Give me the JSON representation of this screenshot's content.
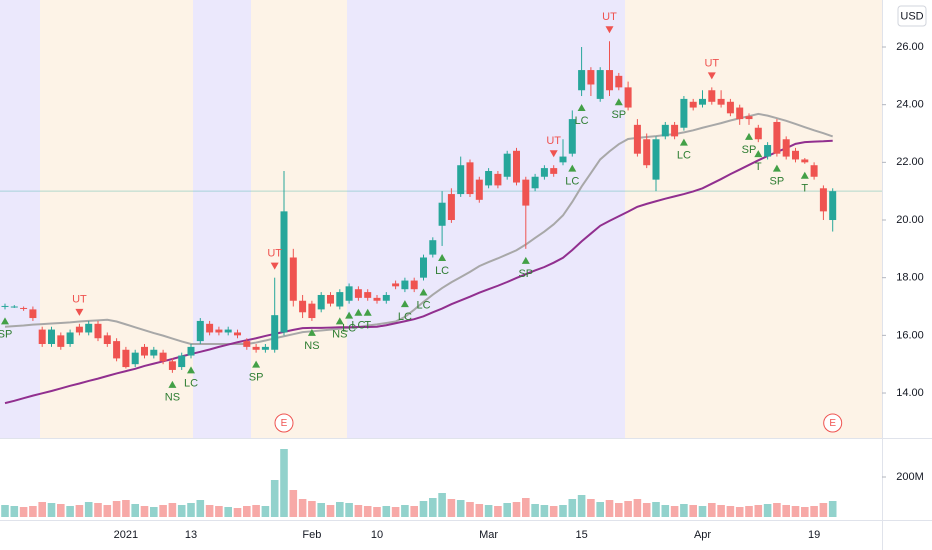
{
  "chart_data": {
    "type": "candlestick",
    "currency": "USD",
    "categories": [
      null,
      null,
      null,
      null,
      null,
      null,
      null,
      null,
      null,
      null,
      null,
      null,
      null,
      "2021",
      null,
      null,
      null,
      null,
      null,
      null,
      "13",
      null,
      null,
      null,
      null,
      null,
      null,
      null,
      null,
      null,
      null,
      null,
      null,
      "Feb",
      null,
      null,
      null,
      null,
      null,
      null,
      "10",
      null,
      null,
      null,
      null,
      null,
      null,
      null,
      null,
      null,
      null,
      null,
      "Mar",
      null,
      null,
      null,
      null,
      null,
      null,
      null,
      null,
      null,
      "15",
      null,
      null,
      null,
      null,
      null,
      null,
      null,
      null,
      null,
      null,
      null,
      null,
      "Apr",
      null,
      null,
      null,
      null,
      null,
      null,
      null,
      null,
      null,
      null,
      null,
      "19",
      null,
      null
    ],
    "open": [
      17.0,
      16.98,
      16.95,
      16.9,
      16.2,
      15.7,
      16.0,
      15.7,
      16.3,
      16.1,
      16.4,
      16.0,
      15.8,
      15.5,
      15.0,
      15.6,
      15.3,
      15.4,
      15.1,
      14.9,
      15.3,
      15.8,
      16.4,
      16.2,
      16.1,
      16.1,
      15.8,
      15.6,
      15.5,
      15.5,
      16.1,
      18.7,
      17.2,
      17.1,
      16.9,
      17.4,
      17.0,
      17.2,
      17.6,
      17.5,
      17.3,
      17.2,
      17.8,
      17.6,
      17.9,
      18.0,
      18.8,
      19.8,
      20.9,
      20.9,
      22.0,
      21.4,
      21.2,
      21.6,
      21.5,
      22.4,
      21.4,
      21.1,
      21.5,
      21.8,
      22.0,
      22.3,
      24.5,
      25.2,
      24.2,
      25.2,
      25.0,
      24.6,
      23.3,
      22.8,
      21.4,
      22.9,
      23.3,
      23.2,
      24.1,
      24.0,
      24.5,
      24.2,
      24.1,
      23.9,
      23.6,
      23.2,
      22.2,
      23.4,
      22.8,
      22.4,
      22.1,
      21.9,
      21.1,
      20.0
    ],
    "high": [
      17.1,
      17.05,
      17.0,
      17.0,
      16.3,
      16.3,
      16.1,
      16.2,
      16.4,
      16.5,
      16.5,
      16.1,
      15.9,
      15.6,
      15.5,
      15.7,
      15.6,
      15.5,
      15.2,
      15.4,
      15.7,
      16.6,
      16.5,
      16.3,
      16.3,
      16.2,
      15.9,
      15.7,
      15.7,
      18.0,
      21.7,
      19.0,
      17.4,
      17.2,
      17.5,
      17.5,
      17.6,
      17.8,
      17.7,
      17.6,
      17.4,
      17.5,
      17.9,
      18.0,
      18.0,
      18.8,
      19.4,
      21.0,
      21.1,
      22.2,
      22.1,
      21.5,
      21.8,
      21.7,
      22.4,
      22.5,
      21.5,
      21.6,
      21.9,
      21.9,
      22.8,
      23.8,
      26.0,
      25.3,
      25.3,
      26.2,
      25.1,
      24.8,
      23.5,
      23.0,
      22.9,
      23.4,
      23.4,
      24.3,
      24.2,
      24.5,
      24.6,
      24.5,
      24.2,
      24.0,
      23.7,
      23.3,
      22.7,
      23.5,
      22.9,
      22.5,
      22.15,
      22.0,
      21.2,
      21.1
    ],
    "low": [
      16.9,
      16.95,
      16.85,
      16.5,
      15.6,
      15.6,
      15.5,
      15.6,
      16.0,
      16.0,
      15.8,
      15.6,
      15.1,
      14.85,
      14.9,
      15.2,
      15.2,
      15.0,
      14.7,
      14.8,
      15.2,
      15.7,
      16.0,
      16.0,
      16.0,
      15.9,
      15.5,
      15.4,
      15.4,
      15.4,
      16.0,
      17.0,
      16.6,
      16.5,
      16.8,
      17.0,
      16.9,
      17.1,
      17.2,
      17.2,
      17.1,
      17.1,
      17.6,
      17.5,
      17.5,
      17.9,
      18.7,
      19.1,
      19.9,
      20.8,
      20.8,
      20.6,
      21.1,
      21.1,
      21.4,
      21.2,
      19.0,
      21.0,
      21.4,
      21.5,
      21.9,
      22.2,
      24.3,
      24.3,
      24.1,
      24.3,
      24.5,
      23.8,
      22.2,
      21.8,
      21.0,
      22.8,
      22.8,
      23.1,
      23.8,
      23.9,
      24.0,
      23.9,
      23.6,
      23.3,
      23.3,
      22.7,
      22.1,
      22.2,
      22.1,
      22.0,
      21.95,
      21.4,
      20.0,
      19.6
    ],
    "close": [
      17.02,
      17.0,
      16.93,
      16.6,
      15.7,
      16.2,
      15.6,
      16.1,
      16.1,
      16.4,
      15.9,
      15.7,
      15.2,
      14.9,
      15.4,
      15.3,
      15.5,
      15.1,
      14.8,
      15.3,
      15.6,
      16.5,
      16.1,
      16.1,
      16.2,
      16.0,
      15.6,
      15.5,
      15.6,
      16.7,
      20.3,
      17.2,
      16.8,
      16.6,
      17.4,
      17.1,
      17.5,
      17.7,
      17.3,
      17.3,
      17.2,
      17.4,
      17.7,
      17.9,
      17.6,
      18.7,
      19.3,
      20.6,
      20.0,
      21.9,
      20.9,
      20.7,
      21.7,
      21.2,
      22.3,
      21.3,
      20.5,
      21.5,
      21.8,
      21.6,
      22.2,
      23.5,
      25.2,
      24.7,
      25.2,
      24.5,
      24.6,
      23.9,
      22.3,
      21.9,
      22.8,
      23.3,
      22.9,
      24.2,
      23.9,
      24.2,
      24.1,
      24.0,
      23.7,
      23.5,
      23.5,
      22.8,
      22.6,
      22.3,
      22.2,
      22.1,
      22.0,
      21.5,
      20.3,
      21.0
    ],
    "volume": [
      60,
      55,
      50,
      55,
      75,
      70,
      65,
      55,
      60,
      75,
      70,
      60,
      80,
      85,
      65,
      55,
      50,
      60,
      70,
      60,
      70,
      85,
      60,
      55,
      50,
      45,
      55,
      60,
      55,
      185,
      340,
      135,
      90,
      80,
      70,
      60,
      75,
      70,
      60,
      55,
      50,
      55,
      50,
      60,
      55,
      80,
      95,
      120,
      90,
      85,
      75,
      65,
      60,
      55,
      70,
      75,
      95,
      65,
      60,
      55,
      60,
      90,
      110,
      90,
      75,
      85,
      70,
      80,
      90,
      70,
      75,
      60,
      55,
      65,
      60,
      55,
      70,
      60,
      55,
      50,
      55,
      60,
      65,
      70,
      60,
      55,
      50,
      55,
      70,
      80
    ],
    "lines": [
      {
        "color": "#a8a8a8",
        "values": [
          16.3,
          16.32,
          16.34,
          16.37,
          16.39,
          16.41,
          16.43,
          16.45,
          16.48,
          16.5,
          16.52,
          16.54,
          16.48,
          16.38,
          16.28,
          16.18,
          16.08,
          15.99,
          15.89,
          15.79,
          15.7,
          15.7,
          15.7,
          15.7,
          15.7,
          15.7,
          15.7,
          15.75,
          15.82,
          15.9,
          15.97,
          16.04,
          16.11,
          16.14,
          16.17,
          16.2,
          16.23,
          16.26,
          16.29,
          16.34,
          16.38,
          16.43,
          16.48,
          16.64,
          16.89,
          17.16,
          17.41,
          17.64,
          17.84,
          18.02,
          18.2,
          18.4,
          18.54,
          18.67,
          18.81,
          18.95,
          19.15,
          19.38,
          19.6,
          19.85,
          20.16,
          20.63,
          21.16,
          21.63,
          22.1,
          22.38,
          22.63,
          22.81,
          22.85,
          22.88,
          22.91,
          22.95,
          22.98,
          23.04,
          23.11,
          23.2,
          23.28,
          23.36,
          23.45,
          23.53,
          23.6,
          23.68,
          23.62,
          23.53,
          23.44,
          23.33,
          23.22,
          23.11,
          23.01,
          22.9
        ]
      },
      {
        "color": "#912f8f",
        "values": [
          13.65,
          13.73,
          13.82,
          13.91,
          13.99,
          14.07,
          14.16,
          14.25,
          14.33,
          14.42,
          14.5,
          14.59,
          14.68,
          14.76,
          14.84,
          14.94,
          15.02,
          15.1,
          15.18,
          15.27,
          15.35,
          15.43,
          15.51,
          15.6,
          15.68,
          15.76,
          15.83,
          15.9,
          15.98,
          16.05,
          16.12,
          16.19,
          16.25,
          16.26,
          16.26,
          16.27,
          16.28,
          16.28,
          16.29,
          16.29,
          16.3,
          16.35,
          16.42,
          16.49,
          16.56,
          16.66,
          16.8,
          16.93,
          17.08,
          17.21,
          17.34,
          17.48,
          17.6,
          17.72,
          17.85,
          17.99,
          18.12,
          18.25,
          18.37,
          18.52,
          18.69,
          18.96,
          19.26,
          19.53,
          19.8,
          19.97,
          20.13,
          20.29,
          20.46,
          20.56,
          20.65,
          20.74,
          20.82,
          20.9,
          20.99,
          21.1,
          21.26,
          21.42,
          21.59,
          21.75,
          21.91,
          22.07,
          22.22,
          22.36,
          22.49,
          22.64,
          22.7,
          22.72,
          22.73,
          22.75
        ]
      }
    ],
    "signals_above": [
      null,
      null,
      null,
      null,
      null,
      null,
      null,
      null,
      "UT",
      null,
      null,
      null,
      null,
      null,
      null,
      null,
      null,
      null,
      null,
      null,
      null,
      null,
      null,
      null,
      null,
      null,
      null,
      null,
      null,
      "UT",
      null,
      null,
      null,
      null,
      null,
      null,
      null,
      null,
      null,
      null,
      null,
      null,
      null,
      null,
      null,
      null,
      null,
      null,
      null,
      null,
      null,
      null,
      null,
      null,
      null,
      null,
      null,
      null,
      null,
      "UT",
      null,
      null,
      null,
      null,
      null,
      "UT",
      null,
      null,
      null,
      null,
      null,
      null,
      null,
      null,
      null,
      null,
      "UT",
      null,
      null,
      null,
      null,
      null,
      null,
      null,
      null,
      null,
      null,
      null,
      null,
      null
    ],
    "signals_below": [
      "SP",
      null,
      null,
      null,
      null,
      null,
      null,
      null,
      null,
      null,
      null,
      null,
      null,
      null,
      null,
      null,
      null,
      null,
      "NS",
      null,
      "LC",
      null,
      null,
      null,
      null,
      null,
      null,
      "SP",
      null,
      null,
      null,
      null,
      null,
      "NS",
      null,
      null,
      "NS",
      "LC",
      "LC",
      "T",
      null,
      null,
      null,
      "LC",
      null,
      "LC",
      null,
      "LC",
      null,
      null,
      null,
      null,
      null,
      null,
      null,
      null,
      "SP",
      null,
      null,
      null,
      null,
      "LC",
      "LC",
      null,
      null,
      null,
      "SP",
      null,
      null,
      null,
      null,
      null,
      null,
      "LC",
      null,
      null,
      null,
      null,
      null,
      null,
      "SP",
      "T",
      null,
      "SP",
      null,
      null,
      "T",
      null,
      null,
      null
    ],
    "earnings": [
      null,
      null,
      null,
      null,
      null,
      null,
      null,
      null,
      null,
      null,
      null,
      null,
      null,
      null,
      null,
      null,
      null,
      null,
      null,
      null,
      null,
      null,
      null,
      null,
      null,
      null,
      null,
      null,
      null,
      null,
      "E",
      null,
      null,
      null,
      null,
      null,
      null,
      null,
      null,
      null,
      null,
      null,
      null,
      null,
      null,
      null,
      null,
      null,
      null,
      null,
      null,
      null,
      null,
      null,
      null,
      null,
      null,
      null,
      null,
      null,
      null,
      null,
      null,
      null,
      null,
      null,
      null,
      null,
      null,
      null,
      null,
      null,
      null,
      null,
      null,
      null,
      null,
      null,
      null,
      null,
      null,
      null,
      null,
      null,
      null,
      null,
      null,
      null,
      null,
      "E"
    ],
    "up_color": "#26a69a",
    "down_color": "#ef5350",
    "signal_above_color": "#ef5350",
    "signal_below_color": "#43a047",
    "earnings_color": "#ef5350",
    "ylim": [
      12.44,
      27.63
    ],
    "yticks": [
      {
        "value": 14,
        "label": "14.00"
      },
      {
        "value": 16,
        "label": "16.00"
      },
      {
        "value": 18,
        "label": "18.00"
      },
      {
        "value": 20,
        "label": "20.00"
      },
      {
        "value": 22,
        "label": "22.00"
      },
      {
        "value": 24,
        "label": "24.00"
      },
      {
        "value": 26,
        "label": "26.00"
      }
    ],
    "vlim": [
      0,
      385
    ],
    "vticks": [
      {
        "value": 200,
        "label": "200M"
      }
    ],
    "grid": false
  }
}
